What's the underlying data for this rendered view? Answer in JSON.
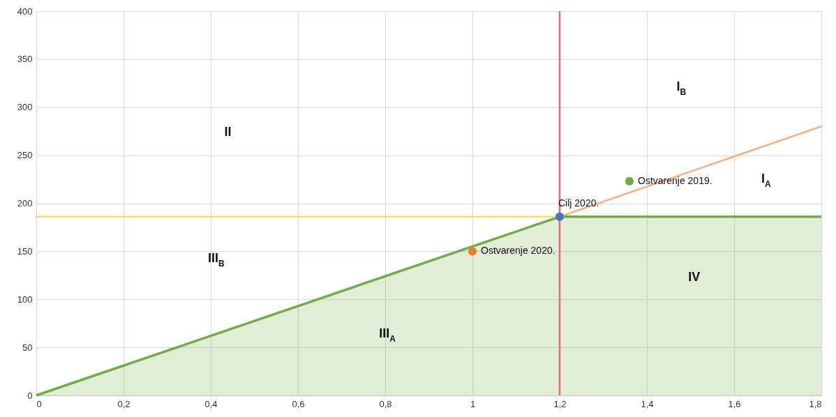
{
  "chart_data": {
    "type": "line",
    "xlim": [
      0,
      1.8
    ],
    "xticks": [
      0,
      {
        "value": 0.2,
        "label": "0,2"
      },
      {
        "value": 0.4,
        "label": "0,4"
      },
      {
        "value": 0.6,
        "label": "0,6"
      },
      {
        "value": 0.8,
        "label": "0,8"
      },
      1,
      {
        "value": 1.2,
        "label": "1,2"
      },
      {
        "value": 1.4,
        "label": "1,4"
      },
      {
        "value": 1.6,
        "label": "1,6"
      },
      {
        "value": 1.8,
        "label": "1,8"
      }
    ],
    "ylim": [
      0,
      400
    ],
    "yticks": [
      0,
      50,
      100,
      150,
      200,
      250,
      300,
      350,
      400
    ],
    "grid": true,
    "series": [
      {
        "type": "area",
        "color": "#70ad47",
        "x": [
          0,
          1.2,
          1.8
        ],
        "values": [
          0,
          186,
          186
        ]
      },
      {
        "color": "#ffd966",
        "x": [
          0,
          1.2
        ],
        "values": [
          186,
          186
        ]
      },
      {
        "color": "#f4b183",
        "x": [
          1.2,
          1.8
        ],
        "values": [
          186,
          280
        ]
      },
      {
        "type": "scatter",
        "name": "Ostvarenje 2020.",
        "color": "#ed7d31",
        "marker": "circle",
        "x": [
          1.0
        ],
        "values": [
          150
        ]
      },
      {
        "type": "scatter",
        "name": "Ostvarenje 2019.",
        "color": "#70ad47",
        "marker": "circle",
        "x": [
          1.36
        ],
        "values": [
          223
        ]
      },
      {
        "type": "scatter",
        "name": "Cilj 2020.",
        "color": "#4472c4",
        "marker": "circle",
        "x": [
          1.2
        ],
        "values": [
          186
        ]
      }
    ],
    "ref_lines": [
      {
        "axis": "x",
        "value": 1.2,
        "color": "#f4676a"
      }
    ],
    "annotations": [
      "II",
      "III$_{B}$",
      "III$_{A}$",
      "I$_{B}$",
      "I$_{A}$",
      "IV"
    ]
  }
}
